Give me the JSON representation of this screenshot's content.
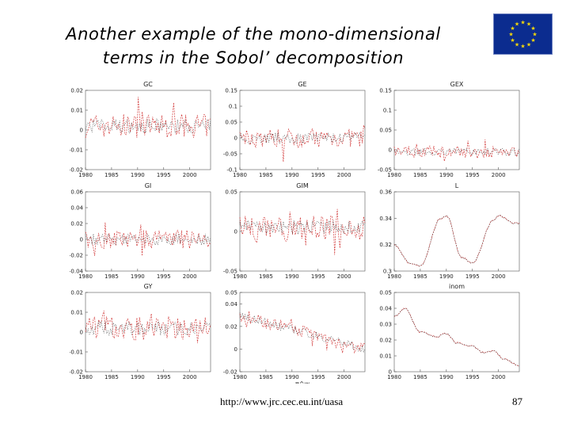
{
  "slide": {
    "title_line1": "Another example of the mono-dimensional",
    "title_line2": "terms in the Sobol’ decomposition",
    "footer_url": "http://www.jrc.cec.eu.int/uasa",
    "page_number": "87",
    "flag_icon": "eu-flag-icon"
  },
  "colors": {
    "series_red": "#d23a3a",
    "series_dark": "#333333",
    "flag_blue": "#0b2c8f",
    "flag_star": "#f5d90a"
  },
  "chart_data": [
    {
      "type": "line",
      "title": "GC",
      "x_ticks": [
        "1980",
        "1985",
        "1990",
        "1995",
        "2000"
      ],
      "y_ticks": [
        "0.02",
        "0.01",
        "0",
        "-0.01",
        "-0.02"
      ],
      "ylim": [
        -0.02,
        0.02
      ],
      "xlim": [
        1980,
        2004
      ],
      "series": [
        {
          "values_style": "noisy",
          "mean": 0.002,
          "amp": 0.006
        }
      ]
    },
    {
      "type": "line",
      "title": "GE",
      "x_ticks": [
        "1980",
        "1985",
        "1990",
        "1995",
        "2000"
      ],
      "y_ticks": [
        "0.15",
        "0.1",
        "0.05",
        "0",
        "-0.05",
        "-0.1"
      ],
      "ylim": [
        -0.1,
        0.15
      ],
      "xlim": [
        1980,
        2004
      ],
      "series": [
        {
          "values_style": "noisy",
          "mean": 0.0,
          "amp": 0.03
        }
      ]
    },
    {
      "type": "line",
      "title": "GEX",
      "x_ticks": [
        "1980",
        "1985",
        "1990",
        "1995",
        "2000"
      ],
      "y_ticks": [
        "0.15",
        "0.1",
        "0.05",
        "0",
        "-0.05"
      ],
      "ylim": [
        -0.05,
        0.15
      ],
      "xlim": [
        1980,
        2004
      ],
      "series": [
        {
          "values_style": "noisy",
          "mean": -0.005,
          "amp": 0.015
        }
      ]
    },
    {
      "type": "line",
      "title": "GI",
      "x_ticks": [
        "1980",
        "1985",
        "1990",
        "1995",
        "2000"
      ],
      "y_ticks": [
        "0.06",
        "0.04",
        "0.02",
        "0",
        "-0.02",
        "-0.04"
      ],
      "ylim": [
        -0.04,
        0.06
      ],
      "xlim": [
        1980,
        2004
      ],
      "series": [
        {
          "values_style": "noisy",
          "mean": 0.0,
          "amp": 0.012
        }
      ]
    },
    {
      "type": "line",
      "title": "GIM",
      "x_ticks": [
        "1980",
        "1985",
        "1990",
        "1995",
        "2000"
      ],
      "y_ticks": [
        "0.05",
        "0",
        "-0.05"
      ],
      "ylim": [
        -0.05,
        0.05
      ],
      "xlim": [
        1980,
        2004
      ],
      "series": [
        {
          "values_style": "noisy",
          "mean": 0.005,
          "amp": 0.015
        }
      ]
    },
    {
      "type": "line",
      "title": "L",
      "x_ticks": [
        "1980",
        "1985",
        "1990",
        "1995",
        "2000"
      ],
      "y_ticks": [
        "0.36",
        "0.34",
        "0.32",
        "0.3"
      ],
      "ylim": [
        0.3,
        0.36
      ],
      "xlim": [
        1980,
        2004
      ],
      "series": [
        {
          "values_style": "smooth_wave",
          "points": [
            [
              1980,
              0.32
            ],
            [
              1983,
              0.306
            ],
            [
              1985,
              0.304
            ],
            [
              1989,
              0.34
            ],
            [
              1990,
              0.342
            ],
            [
              1993,
              0.31
            ],
            [
              1995,
              0.306
            ],
            [
              1999,
              0.338
            ],
            [
              2000,
              0.342
            ],
            [
              2003,
              0.336
            ]
          ]
        }
      ]
    },
    {
      "type": "line",
      "title": "GY",
      "x_ticks": [
        "1980",
        "1985",
        "1990",
        "1995",
        "2000"
      ],
      "y_ticks": [
        "0.02",
        "0.01",
        "0",
        "-0.01",
        "-0.02"
      ],
      "ylim": [
        -0.02,
        0.02
      ],
      "xlim": [
        1980,
        2004
      ],
      "series": [
        {
          "values_style": "noisy",
          "mean": 0.002,
          "amp": 0.006
        }
      ]
    },
    {
      "type": "line",
      "title": "",
      "x_label": "π^w",
      "x_ticks": [
        "1980",
        "1985",
        "1990",
        "1995",
        "2000"
      ],
      "y_ticks": [
        "0.05",
        "0.04",
        "0.02",
        "0",
        "-0.02"
      ],
      "ylim": [
        -0.02,
        0.05
      ],
      "xlim": [
        1980,
        2004
      ],
      "series": [
        {
          "values_style": "trend",
          "start": 0.03,
          "end": 0.0,
          "amp": 0.006
        }
      ]
    },
    {
      "type": "line",
      "title": "inom",
      "x_ticks": [
        "1980",
        "1985",
        "1990",
        "1995",
        "2000"
      ],
      "y_ticks": [
        "0.05",
        "0.04",
        "0.03",
        "0.02",
        "0.01",
        "0"
      ],
      "ylim": [
        0,
        0.05
      ],
      "xlim": [
        1980,
        2004
      ],
      "series": [
        {
          "values_style": "smooth_wave",
          "points": [
            [
              1980,
              0.035
            ],
            [
              1982,
              0.04
            ],
            [
              1985,
              0.025
            ],
            [
              1988,
              0.022
            ],
            [
              1990,
              0.024
            ],
            [
              1992,
              0.018
            ],
            [
              1995,
              0.016
            ],
            [
              1997,
              0.012
            ],
            [
              1999,
              0.013
            ],
            [
              2001,
              0.008
            ],
            [
              2004,
              0.004
            ]
          ]
        }
      ]
    }
  ]
}
